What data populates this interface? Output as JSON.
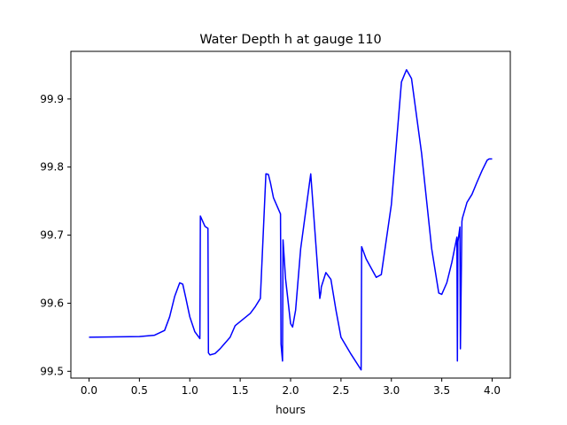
{
  "chart_data": {
    "type": "line",
    "title": "Water Depth h at gauge 110",
    "xlabel": "hours",
    "ylabel": "",
    "xlim": [
      -0.18,
      4.18
    ],
    "ylim": [
      99.49,
      99.97
    ],
    "grid": false,
    "line_color": "#0000ff",
    "x_ticks": [
      0.0,
      0.5,
      1.0,
      1.5,
      2.0,
      2.5,
      3.0,
      3.5,
      4.0
    ],
    "x_tick_labels": [
      "0.0",
      "0.5",
      "1.0",
      "1.5",
      "2.0",
      "2.5",
      "3.0",
      "3.5",
      "4.0"
    ],
    "y_ticks": [
      99.5,
      99.6,
      99.7,
      99.8,
      99.9
    ],
    "y_tick_labels": [
      "99.5",
      "99.6",
      "99.7",
      "99.8",
      "99.9"
    ],
    "series": [
      {
        "x": [
          0.0,
          0.5,
          0.65,
          0.75,
          0.8,
          0.85,
          0.9,
          0.93,
          0.96,
          1.0,
          1.05,
          1.1,
          1.105,
          1.15,
          1.18,
          1.185,
          1.2,
          1.25,
          1.3,
          1.4,
          1.45,
          1.5,
          1.6,
          1.65,
          1.7,
          1.755,
          1.76,
          1.78,
          1.8,
          1.83,
          1.9,
          1.905,
          1.92,
          1.925,
          1.95,
          2.0,
          2.02,
          2.05,
          2.1,
          2.2,
          2.29,
          2.3,
          2.305,
          2.35,
          2.4,
          2.45,
          2.5,
          2.6,
          2.7,
          2.705,
          2.75,
          2.85,
          2.9,
          3.0,
          3.1,
          3.15,
          3.2,
          3.3,
          3.4,
          3.47,
          3.5,
          3.55,
          3.6,
          3.65,
          3.655,
          3.66,
          3.68,
          3.685,
          3.7,
          3.705,
          3.75,
          3.8,
          3.85,
          3.9,
          3.95,
          3.97,
          4.0
        ],
        "y": [
          99.55,
          99.551,
          99.553,
          99.56,
          99.58,
          99.61,
          99.63,
          99.628,
          99.608,
          99.58,
          99.558,
          99.548,
          99.728,
          99.713,
          99.71,
          99.527,
          99.524,
          99.526,
          99.533,
          99.55,
          99.567,
          99.573,
          99.585,
          99.595,
          99.607,
          99.79,
          99.79,
          99.789,
          99.777,
          99.755,
          99.731,
          99.54,
          99.515,
          99.693,
          99.636,
          99.57,
          99.565,
          99.59,
          99.68,
          99.79,
          99.607,
          99.616,
          99.624,
          99.645,
          99.635,
          99.59,
          99.55,
          99.525,
          99.502,
          99.683,
          99.665,
          99.638,
          99.642,
          99.745,
          99.925,
          99.943,
          99.93,
          99.82,
          99.68,
          99.615,
          99.613,
          99.63,
          99.66,
          99.697,
          99.515,
          99.69,
          99.712,
          99.533,
          99.72,
          99.725,
          99.748,
          99.76,
          99.778,
          99.795,
          99.81,
          99.812,
          99.812
        ]
      }
    ]
  }
}
